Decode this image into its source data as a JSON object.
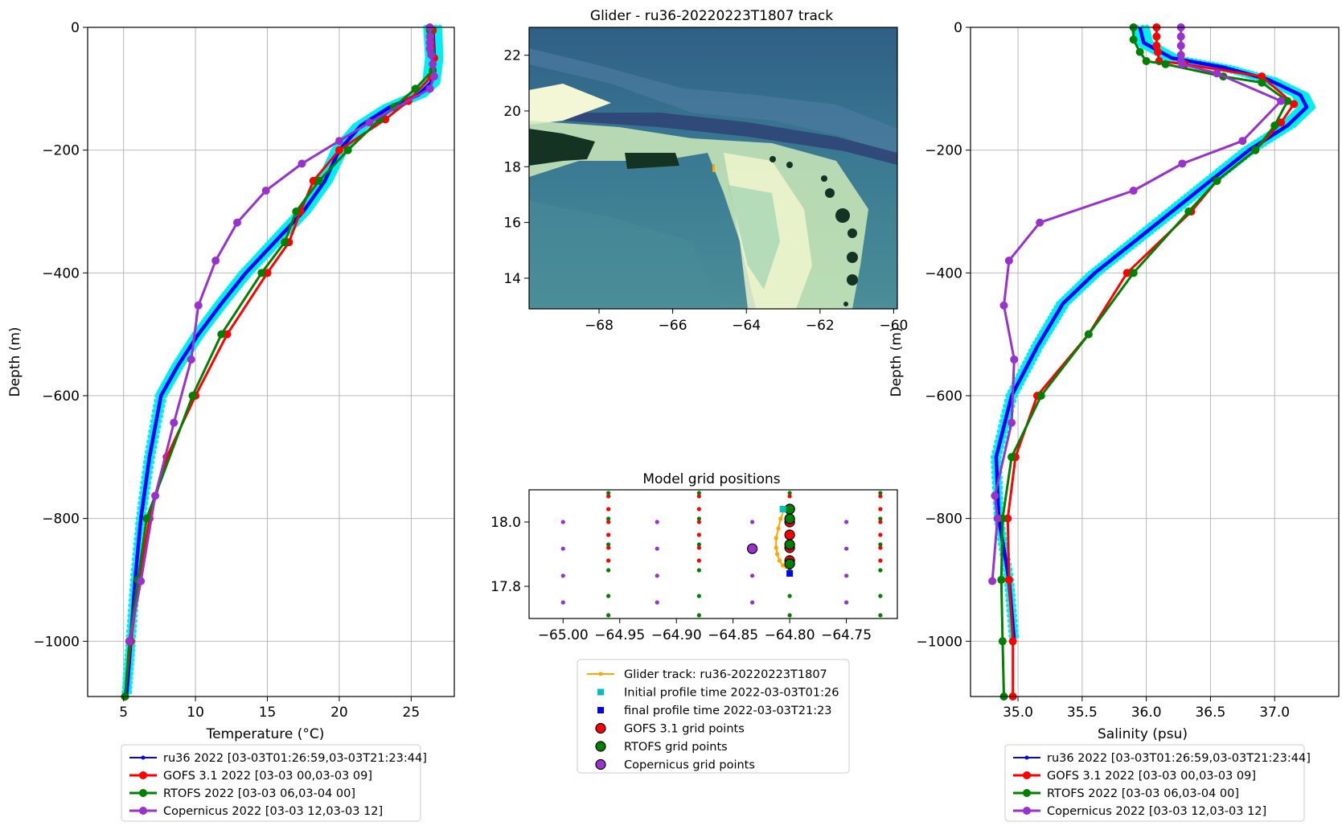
{
  "colors": {
    "glider": "#0000ff",
    "glider_cloud": "#00eeee",
    "gofs": "#ff0000",
    "rtofs": "#008000",
    "copernicus": "#9932cc",
    "track": "#ffa500",
    "initial_marker": "#00bfbf",
    "final_marker": "#0000ff"
  },
  "chart_data": [
    {
      "id": "temperature",
      "type": "line",
      "xlabel": "Temperature (°C)",
      "ylabel": "Depth (m)",
      "xlim": [
        2.5,
        28
      ],
      "ylim": [
        -1090,
        0
      ],
      "xticks": [
        5,
        10,
        15,
        20,
        25
      ],
      "yticks": [
        0,
        -200,
        -400,
        -600,
        -800,
        -1000
      ],
      "grid": true,
      "legend_position": "below",
      "series": [
        {
          "name": "ru36 2022 [03-03T01:26:59,03-03T21:23:44]",
          "color": "#0000ff",
          "marker": "dot",
          "x": [
            26.5,
            26.6,
            26.4,
            25.5,
            23.5,
            21.5,
            20.0,
            19.0,
            17.5,
            15.5,
            13.5,
            11.8,
            10.2,
            8.8,
            7.6,
            6.8,
            6.2,
            5.8,
            5.5,
            5.2
          ],
          "y": [
            0,
            -50,
            -90,
            -110,
            -130,
            -160,
            -200,
            -250,
            -300,
            -350,
            -400,
            -450,
            -500,
            -550,
            -600,
            -700,
            -800,
            -900,
            -1000,
            -1090
          ]
        },
        {
          "name": "GOFS 3.1 2022 [03-03 00,03-03 09]",
          "color": "#ff0000",
          "marker": "o",
          "x": [
            26.5,
            26.6,
            26.4,
            24.8,
            23.2,
            20.0,
            18.2,
            17.3,
            16.5,
            15.0,
            12.2,
            10.0,
            8.0,
            6.8,
            6.1,
            5.5,
            5.1
          ],
          "y": [
            -5,
            -50,
            -80,
            -120,
            -150,
            -200,
            -250,
            -300,
            -350,
            -400,
            -500,
            -600,
            -700,
            -800,
            -900,
            -1000,
            -1090
          ]
        },
        {
          "name": "RTOFS 2022 [03-03 06,03-04 00]",
          "color": "#008000",
          "marker": "o",
          "x": [
            26.3,
            26.4,
            26.5,
            25.3,
            23.8,
            22.8,
            20.6,
            18.6,
            17.0,
            16.2,
            14.6,
            11.8,
            9.8,
            6.6,
            6.0,
            5.4,
            5.1
          ],
          "y": [
            -5,
            -40,
            -70,
            -100,
            -130,
            -150,
            -200,
            -250,
            -300,
            -350,
            -400,
            -500,
            -600,
            -800,
            -900,
            -1000,
            -1090
          ]
        },
        {
          "name": "Copernicus 2022 [03-03 12,03-03 12]",
          "color": "#9932cc",
          "marker": "o",
          "x": [
            26.3,
            26.3,
            26.3,
            26.3,
            26.4,
            26.5,
            26.6,
            26.3,
            22.1,
            20.0,
            17.4,
            14.9,
            12.9,
            11.4,
            10.2,
            9.7,
            8.5,
            7.2,
            6.2,
            5.4
          ],
          "y": [
            0,
            -15,
            -25,
            -35,
            -45,
            -60,
            -80,
            -100,
            -155,
            -185,
            -222,
            -266,
            -318,
            -380,
            -453,
            -541,
            -644,
            -763,
            -902,
            -1000
          ]
        }
      ]
    },
    {
      "id": "salinity",
      "type": "line",
      "xlabel": "Salinity (psu)",
      "ylabel": "Depth (m)",
      "xlim": [
        34.63,
        37.5
      ],
      "ylim": [
        -1090,
        0
      ],
      "xticks": [
        35.0,
        35.5,
        36.0,
        36.5,
        37.0
      ],
      "yticks": [
        0,
        -200,
        -400,
        -600,
        -800,
        -1000
      ],
      "grid": true,
      "legend_position": "below",
      "series": [
        {
          "name": "ru36 2022 [03-03T01:26:59,03-03T21:23:44]",
          "color": "#0000ff",
          "marker": "dot",
          "x": [
            35.95,
            35.98,
            36.2,
            36.6,
            36.95,
            37.2,
            37.25,
            37.1,
            36.8,
            36.5,
            36.2,
            35.9,
            35.6,
            35.35,
            35.15,
            34.95,
            34.83,
            34.85,
            34.93,
            34.97
          ],
          "y": [
            0,
            -25,
            -50,
            -65,
            -85,
            -110,
            -130,
            -160,
            -200,
            -250,
            -300,
            -350,
            -400,
            -450,
            -520,
            -600,
            -700,
            -800,
            -900,
            -1000
          ]
        },
        {
          "name": "GOFS 3.1 2022 [03-03 00,03-03 09]",
          "color": "#ff0000",
          "marker": "o",
          "x": [
            36.08,
            36.08,
            36.08,
            36.09,
            36.1,
            36.3,
            36.9,
            37.15,
            37.05,
            36.85,
            36.55,
            36.35,
            35.85,
            35.55,
            35.15,
            34.98,
            34.92,
            34.93,
            34.96,
            34.96
          ],
          "y": [
            0,
            -15,
            -30,
            -40,
            -55,
            -60,
            -80,
            -125,
            -155,
            -200,
            -250,
            -300,
            -400,
            -500,
            -600,
            -700,
            -800,
            -900,
            -1000,
            -1090
          ]
        },
        {
          "name": "RTOFS 2022 [03-03 06,03-04 00]",
          "color": "#008000",
          "marker": "o",
          "x": [
            35.9,
            35.9,
            35.95,
            36.0,
            36.15,
            36.6,
            36.9,
            37.1,
            37.0,
            36.85,
            36.55,
            36.33,
            35.9,
            35.55,
            35.18,
            34.95,
            34.88,
            34.87,
            34.88,
            34.89
          ],
          "y": [
            0,
            -20,
            -40,
            -55,
            -60,
            -80,
            -90,
            -120,
            -160,
            -200,
            -250,
            -300,
            -400,
            -500,
            -600,
            -700,
            -800,
            -900,
            -1000,
            -1090
          ]
        },
        {
          "name": "Copernicus 2022 [03-03 12,03-03 12]",
          "color": "#9932cc",
          "marker": "o",
          "x": [
            36.27,
            36.27,
            36.27,
            36.27,
            36.27,
            36.28,
            36.55,
            37.05,
            36.75,
            36.28,
            35.9,
            35.17,
            34.93,
            34.89,
            34.97,
            34.95,
            34.82,
            34.84,
            34.8
          ],
          "y": [
            0,
            -15,
            -30,
            -45,
            -55,
            -60,
            -75,
            -120,
            -185,
            -222,
            -266,
            -318,
            -380,
            -453,
            -541,
            -644,
            -763,
            -800,
            -902
          ]
        }
      ]
    },
    {
      "id": "track_map",
      "type": "map",
      "title": "Glider - ru36-20220223T1807 track",
      "xlim": [
        -69.9,
        -59.9
      ],
      "ylim": [
        12.9,
        23.0
      ],
      "xticks": [
        -68,
        -66,
        -64,
        -62,
        -60
      ],
      "yticks": [
        14,
        16,
        18,
        20,
        22
      ],
      "track": {
        "lon": [
          -64.82,
          -64.82,
          -64.8
        ],
        "lat": [
          18.05,
          17.85,
          17.8
        ]
      }
    },
    {
      "id": "model_grid",
      "type": "scatter",
      "title": "Model grid positions",
      "xlim": [
        -65.03,
        -64.705
      ],
      "ylim": [
        17.7,
        18.1
      ],
      "xticks": [
        -65.0,
        -64.95,
        -64.9,
        -64.85,
        -64.8,
        -64.75
      ],
      "yticks": [
        17.8,
        18.0
      ],
      "grid_lon": [
        -64.96,
        -64.88,
        -64.8,
        -64.72
      ],
      "gofs_lat": [
        18.08,
        18.04,
        18.0,
        17.96,
        17.92,
        17.88
      ],
      "rtofs_lat": [
        18.09,
        18.01,
        17.93,
        17.85,
        17.77,
        17.71
      ],
      "copernicus_lon": [
        -65.0,
        -64.917,
        -64.833,
        -64.75
      ],
      "copernicus_lat": [
        18.0,
        17.917,
        17.833,
        17.75
      ],
      "selected_gofs": [
        [
          -64.8,
          18.04
        ],
        [
          -64.8,
          18.0
        ],
        [
          -64.8,
          17.96
        ],
        [
          -64.8,
          17.92
        ],
        [
          -64.8,
          17.88
        ]
      ],
      "selected_rtofs": [
        [
          -64.8,
          18.04
        ],
        [
          -64.8,
          18.01
        ],
        [
          -64.8,
          17.93
        ],
        [
          -64.8,
          17.87
        ]
      ],
      "selected_copernicus": [
        [
          -64.833,
          17.917
        ]
      ],
      "track": {
        "lon": [
          -64.805,
          -64.808,
          -64.81,
          -64.812,
          -64.812,
          -64.811,
          -64.809,
          -64.806,
          -64.803
        ],
        "lat": [
          18.04,
          18.01,
          17.98,
          17.95,
          17.92,
          17.9,
          17.88,
          17.865,
          17.86
        ]
      },
      "initial_point": [
        -64.806,
        18.04
      ],
      "final_point": [
        -64.8,
        17.84
      ]
    }
  ],
  "legend_center": {
    "items": [
      "Glider track: ru36-20220223T1807",
      "Initial profile time 2022-03-03T01:26",
      "final profile time 2022-03-03T21:23",
      "GOFS 3.1 grid points",
      "RTOFS grid points",
      "Copernicus grid points"
    ]
  }
}
